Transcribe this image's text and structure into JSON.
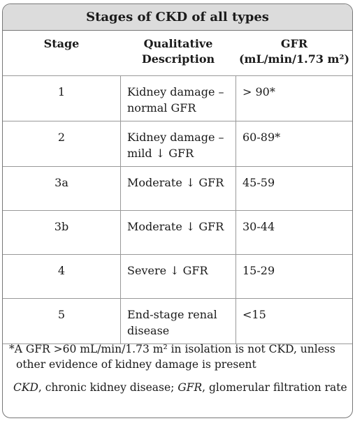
{
  "title": "Stages of CKD of all types",
  "headers": {
    "stage": "Stage",
    "desc_line1": "Qualitative",
    "desc_line2": "Description",
    "gfr_line1": "GFR",
    "gfr_line2": "(mL/min/1.73 m²)"
  },
  "rows": [
    {
      "stage": "1",
      "desc1": "Kidney damage –",
      "desc2": "normal GFR",
      "gfr": "> 90*"
    },
    {
      "stage": "2",
      "desc1": "Kidney damage –",
      "desc2": "mild ↓ GFR",
      "gfr": "60-89*"
    },
    {
      "stage": "3a",
      "desc1": "Moderate ↓ GFR",
      "desc2": "",
      "gfr": "45-59"
    },
    {
      "stage": "3b",
      "desc1": "Moderate ↓ GFR",
      "desc2": "",
      "gfr": "30-44"
    },
    {
      "stage": "4",
      "desc1": "Severe ↓ GFR",
      "desc2": "",
      "gfr": "15-29"
    },
    {
      "stage": "5",
      "desc1": "End-stage renal",
      "desc2": "disease",
      "gfr": "<15"
    }
  ],
  "footnote": {
    "line1": "*A GFR >60 mL/min/1.73 m² in isolation is not CKD, unless",
    "line2": "other evidence of kidney damage is present"
  },
  "abbreviations": {
    "ckd_abbr": "CKD",
    "ckd_text": ", chronic kidney disease; ",
    "gfr_abbr": "GFR",
    "gfr_text": ", glomerular filtration rate"
  }
}
